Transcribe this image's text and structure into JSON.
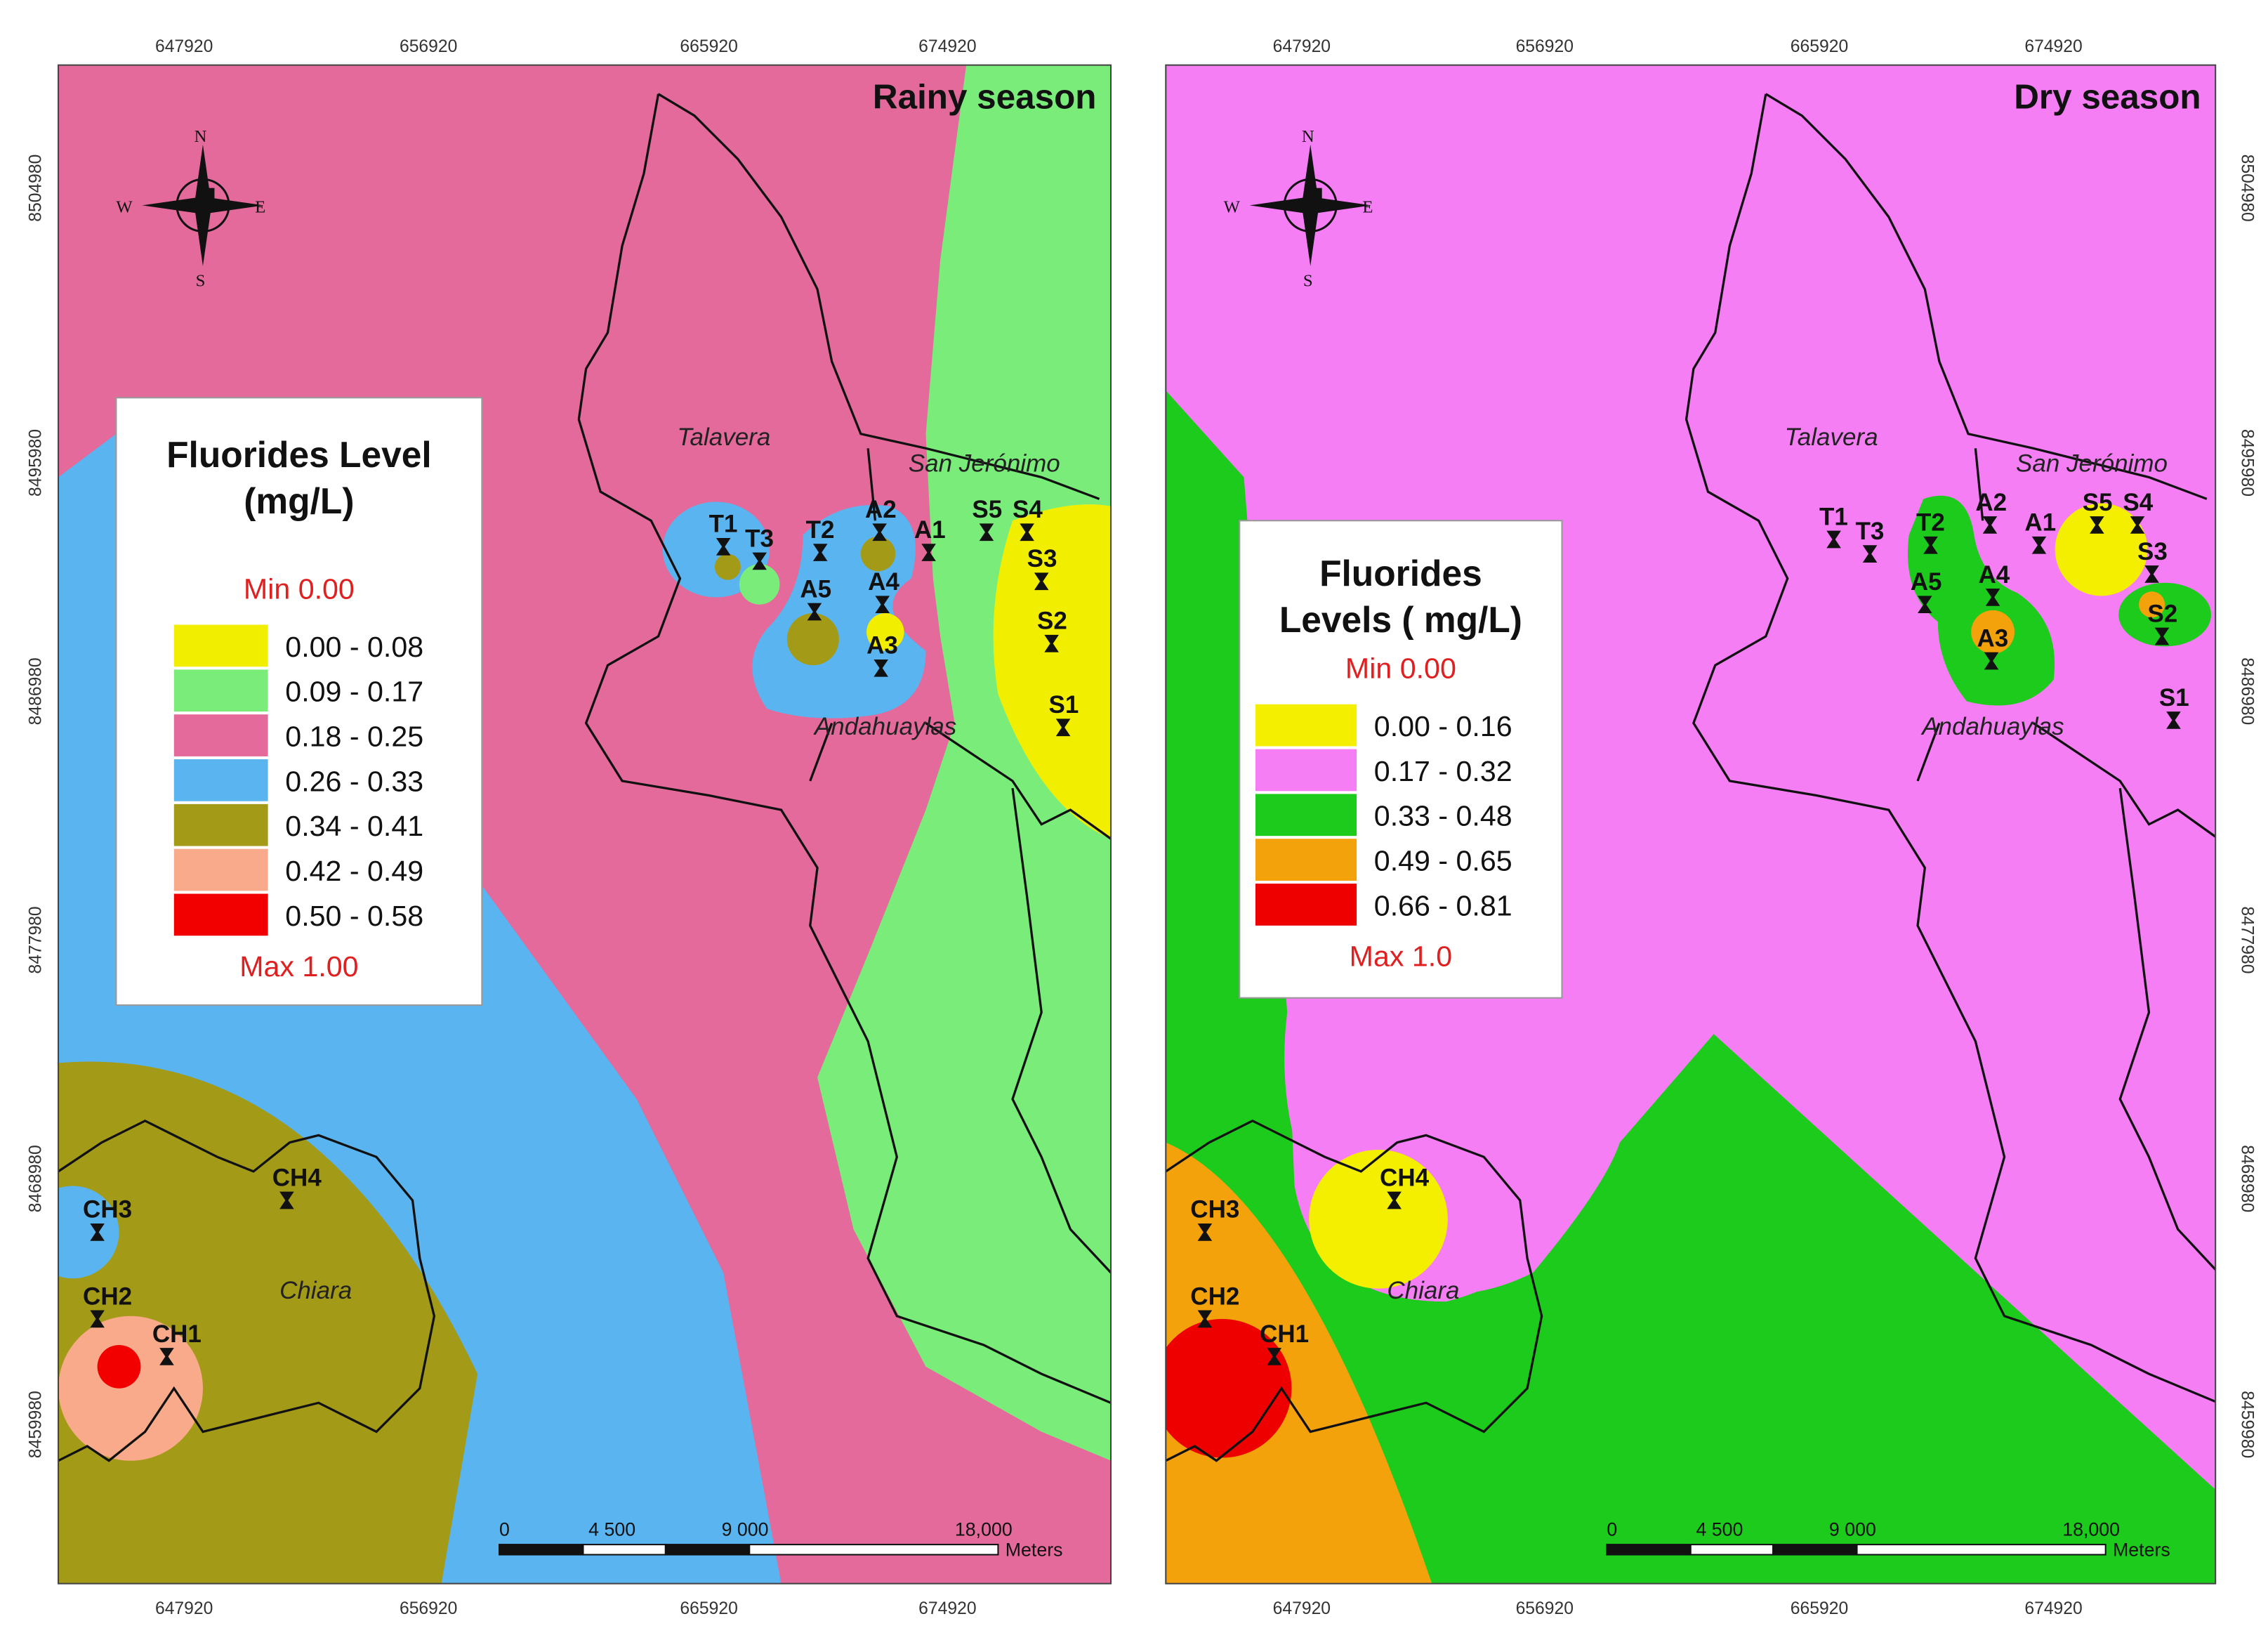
{
  "axes": {
    "x_ticks": [
      "647920",
      "656920",
      "665920",
      "674920"
    ],
    "y_ticks": [
      "8504980",
      "8495980",
      "8486980",
      "8477980",
      "8468980",
      "8459980"
    ]
  },
  "compass": {
    "n": "N",
    "e": "E",
    "s": "S",
    "w": "W"
  },
  "scale_bar": {
    "labels": [
      "0",
      "4 500",
      "9 000",
      "18,000"
    ],
    "unit": "Meters"
  },
  "places": [
    "Talavera",
    "San Jerónimo",
    "Andahuaylas",
    "Chiara"
  ],
  "stations": [
    "T1",
    "T3",
    "T2",
    "A2",
    "A1",
    "S5",
    "S4",
    "S3",
    "S2",
    "S1",
    "A5",
    "A4",
    "A3",
    "CH4",
    "CH3",
    "CH2",
    "CH1"
  ],
  "panels": [
    {
      "title": "Rainy season",
      "legend": {
        "title_lines": [
          "Fluorides Level",
          "(mg/L)"
        ],
        "min": "Min  0.00",
        "max": "Max 1.00",
        "classes": [
          {
            "label": "0.00 - 0.08",
            "color": "#f2ee00"
          },
          {
            "label": "0.09 - 0.17",
            "color": "#7aec7a"
          },
          {
            "label": "0.18 - 0.25",
            "color": "#e36a9b"
          },
          {
            "label": "0.26 - 0.33",
            "color": "#5ab4f0"
          },
          {
            "label": "0.34 - 0.41",
            "color": "#a39b17"
          },
          {
            "label": "0.42 - 0.49",
            "color": "#f9aa8a"
          },
          {
            "label": "0.50 - 0.58",
            "color": "#f20000"
          }
        ]
      }
    },
    {
      "title": "Dry season",
      "legend": {
        "title_lines": [
          "Fluorides",
          "Levels ( mg/L)"
        ],
        "min": "Min 0.00",
        "max": "Max 1.0",
        "classes": [
          {
            "label": "0.00 - 0.16",
            "color": "#f4ef00"
          },
          {
            "label": "0.17 - 0.32",
            "color": "#f57ef5"
          },
          {
            "label": "0.33 - 0.48",
            "color": "#1ccb1c"
          },
          {
            "label": "0.49 - 0.65",
            "color": "#f4a20c"
          },
          {
            "label": "0.66 - 0.81",
            "color": "#ef0000"
          }
        ]
      }
    }
  ]
}
